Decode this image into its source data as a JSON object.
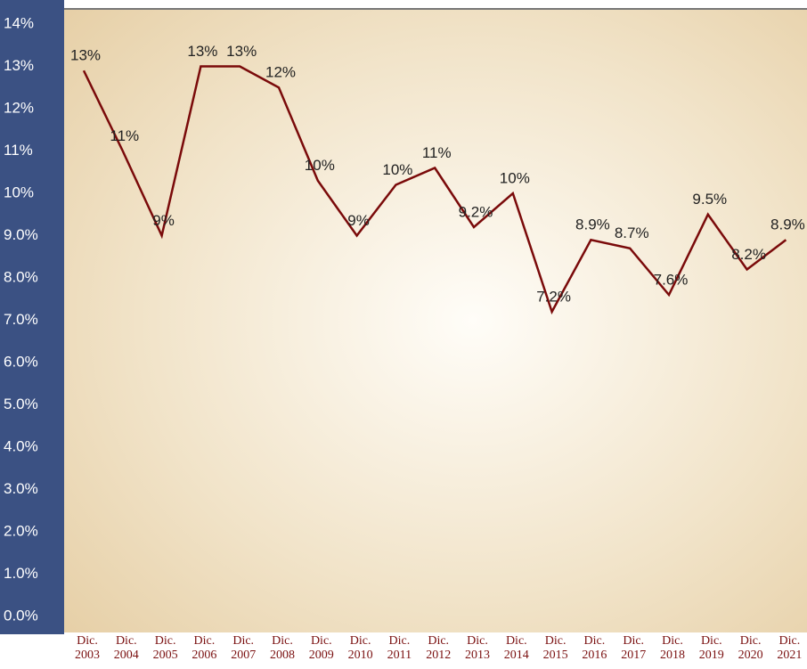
{
  "chart_data": {
    "type": "line",
    "categories": [
      "Dic. 2003",
      "Dic. 2004",
      "Dic. 2005",
      "Dic. 2006",
      "Dic. 2007",
      "Dic. 2008",
      "Dic. 2009",
      "Dic. 2010",
      "Dic. 2011",
      "Dic. 2012",
      "Dic. 2013",
      "Dic. 2014",
      "Dic. 2015",
      "Dic. 2016",
      "Dic. 2017",
      "Dic. 2018",
      "Dic. 2019",
      "Dic. 2020",
      "Dic. 2021"
    ],
    "values": [
      12.9,
      11.0,
      9.0,
      13.0,
      13.0,
      12.5,
      10.3,
      9.0,
      10.2,
      10.6,
      9.2,
      10.0,
      7.2,
      8.9,
      8.7,
      7.6,
      9.5,
      8.2,
      8.9
    ],
    "value_labels": [
      "13%",
      "11%",
      "9%",
      "13%",
      "13%",
      "12%",
      "10%",
      "9%",
      "10%",
      "11%",
      "9.2%",
      "10%",
      "7.2%",
      "8.9%",
      "8.7%",
      "7.6%",
      "9.5%",
      "8.2%",
      "8.9%"
    ],
    "color": "#7a0a0a",
    "ylim": [
      0,
      14
    ],
    "yticks": [
      {
        "value": 0,
        "label": "0.0%"
      },
      {
        "value": 1,
        "label": "1.0%"
      },
      {
        "value": 2,
        "label": "2.0%"
      },
      {
        "value": 3,
        "label": "3.0%"
      },
      {
        "value": 4,
        "label": "4.0%"
      },
      {
        "value": 5,
        "label": "5.0%"
      },
      {
        "value": 6,
        "label": "6.0%"
      },
      {
        "value": 7,
        "label": "7.0%"
      },
      {
        "value": 8,
        "label": "8.0%"
      },
      {
        "value": 9,
        "label": "9.0%"
      },
      {
        "value": 10,
        "label": "10%"
      },
      {
        "value": 11,
        "label": "11%"
      },
      {
        "value": 12,
        "label": "12%"
      },
      {
        "value": 13,
        "label": "13%"
      },
      {
        "value": 14,
        "label": "14%"
      }
    ]
  }
}
